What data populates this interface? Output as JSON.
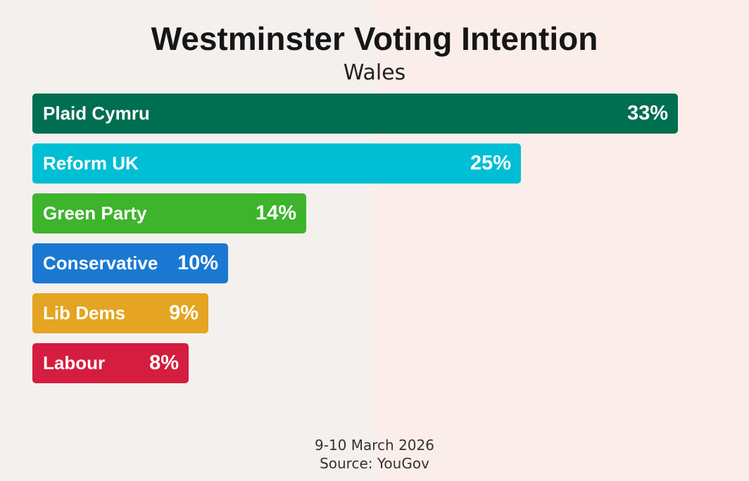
{
  "chart_data": {
    "type": "bar",
    "orientation": "horizontal",
    "title": "Westminster Voting Intention",
    "subtitle": "Wales",
    "categories": [
      "Plaid Cymru",
      "Reform UK",
      "Green Party",
      "Conservative",
      "Lib Dems",
      "Labour"
    ],
    "values": [
      33,
      25,
      14,
      10,
      9,
      8
    ],
    "value_labels": [
      "33%",
      "25%",
      "14%",
      "10%",
      "9%",
      "8%"
    ],
    "colors": [
      "#006e51",
      "#00bed4",
      "#3db42c",
      "#1a78d2",
      "#e5a421",
      "#d41d3f"
    ],
    "xlim": [
      0,
      36
    ],
    "unit": "%",
    "date": "9-10 March 2026",
    "source": "Source: YouGov"
  }
}
